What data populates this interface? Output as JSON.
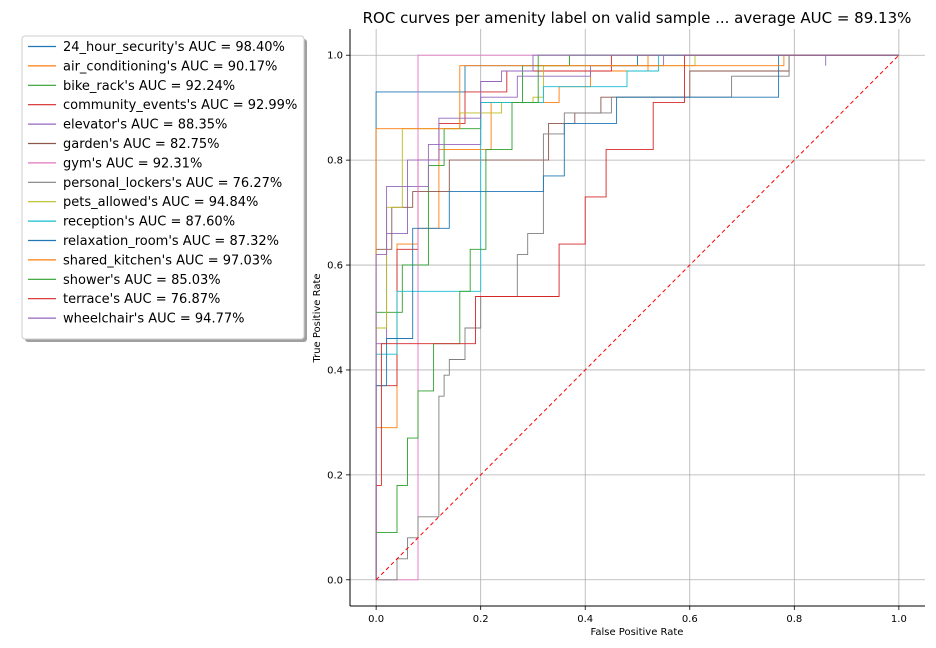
{
  "chart_data": {
    "type": "line",
    "title": "ROC curves per amenity label on valid sample ... average AUC = 89.13%",
    "xlabel": "False Positive Rate",
    "ylabel": "True Positive Rate",
    "xlim": [
      -0.05,
      1.05
    ],
    "ylim": [
      -0.05,
      1.05
    ],
    "xticks": [
      "0.0",
      "0.2",
      "0.4",
      "0.6",
      "0.8",
      "1.0"
    ],
    "yticks": [
      "0.0",
      "0.2",
      "0.4",
      "0.6",
      "0.8",
      "1.0"
    ],
    "grid": true,
    "legend_position": "outside-left",
    "series": [
      {
        "name": "24_hour_security's AUC = 98.40%",
        "color": "#1f77b4",
        "points": [
          [
            0,
            0
          ],
          [
            0,
            0.93
          ],
          [
            0.17,
            0.93
          ],
          [
            0.17,
            0.98
          ],
          [
            0.5,
            0.98
          ],
          [
            0.5,
            1
          ],
          [
            1,
            1
          ]
        ]
      },
      {
        "name": "air_conditioning's AUC = 90.17%",
        "color": "#ff7f0e",
        "points": [
          [
            0,
            0
          ],
          [
            0,
            0.29
          ],
          [
            0.04,
            0.29
          ],
          [
            0.04,
            0.64
          ],
          [
            0.08,
            0.64
          ],
          [
            0.08,
            0.67
          ],
          [
            0.12,
            0.67
          ],
          [
            0.12,
            0.82
          ],
          [
            0.22,
            0.82
          ],
          [
            0.22,
            0.91
          ],
          [
            0.35,
            0.91
          ],
          [
            0.35,
            0.94
          ],
          [
            0.41,
            0.94
          ],
          [
            0.41,
            0.97
          ],
          [
            0.52,
            0.97
          ],
          [
            0.52,
            1
          ],
          [
            1,
            1
          ]
        ]
      },
      {
        "name": "bike_rack's AUC = 92.24%",
        "color": "#2ca02c",
        "points": [
          [
            0,
            0
          ],
          [
            0,
            0.51
          ],
          [
            0.05,
            0.51
          ],
          [
            0.05,
            0.6
          ],
          [
            0.1,
            0.6
          ],
          [
            0.1,
            0.79
          ],
          [
            0.13,
            0.79
          ],
          [
            0.13,
            0.86
          ],
          [
            0.2,
            0.86
          ],
          [
            0.2,
            0.91
          ],
          [
            0.28,
            0.91
          ],
          [
            0.28,
            0.98
          ],
          [
            0.37,
            0.98
          ],
          [
            0.37,
            1
          ],
          [
            1,
            1
          ]
        ]
      },
      {
        "name": "community_events's AUC = 92.99%",
        "color": "#d62728",
        "points": [
          [
            0,
            0
          ],
          [
            0,
            0.37
          ],
          [
            0.04,
            0.37
          ],
          [
            0.04,
            0.63
          ],
          [
            0.08,
            0.63
          ],
          [
            0.08,
            0.8
          ],
          [
            0.12,
            0.8
          ],
          [
            0.12,
            0.87
          ],
          [
            0.17,
            0.87
          ],
          [
            0.17,
            0.93
          ],
          [
            0.25,
            0.93
          ],
          [
            0.25,
            0.97
          ],
          [
            0.45,
            0.97
          ],
          [
            0.45,
            1
          ],
          [
            1,
            1
          ]
        ]
      },
      {
        "name": "elevator's AUC = 88.35%",
        "color": "#9467bd",
        "points": [
          [
            0,
            0
          ],
          [
            0,
            0.45
          ],
          [
            0.02,
            0.45
          ],
          [
            0.02,
            0.66
          ],
          [
            0.06,
            0.66
          ],
          [
            0.06,
            0.75
          ],
          [
            0.1,
            0.75
          ],
          [
            0.1,
            0.83
          ],
          [
            0.2,
            0.83
          ],
          [
            0.2,
            0.92
          ],
          [
            0.27,
            0.92
          ],
          [
            0.27,
            0.96
          ],
          [
            0.41,
            0.96
          ],
          [
            0.41,
            0.98
          ],
          [
            0.55,
            0.98
          ],
          [
            0.55,
            1
          ],
          [
            1,
            1
          ]
        ]
      },
      {
        "name": "garden's AUC = 82.75%",
        "color": "#8c564b",
        "points": [
          [
            0,
            0
          ],
          [
            0,
            0.63
          ],
          [
            0.03,
            0.63
          ],
          [
            0.03,
            0.71
          ],
          [
            0.07,
            0.71
          ],
          [
            0.07,
            0.74
          ],
          [
            0.14,
            0.74
          ],
          [
            0.14,
            0.8
          ],
          [
            0.33,
            0.8
          ],
          [
            0.33,
            0.87
          ],
          [
            0.38,
            0.87
          ],
          [
            0.38,
            0.89
          ],
          [
            0.43,
            0.89
          ],
          [
            0.43,
            0.92
          ],
          [
            0.6,
            0.92
          ],
          [
            0.6,
            0.97
          ],
          [
            0.79,
            0.97
          ],
          [
            0.79,
            1
          ],
          [
            1,
            1
          ]
        ]
      },
      {
        "name": "gym's AUC = 92.31%",
        "color": "#e377c2",
        "points": [
          [
            0,
            0
          ],
          [
            0.08,
            0
          ],
          [
            0.08,
            1
          ],
          [
            1,
            1
          ]
        ]
      },
      {
        "name": "personal_lockers's AUC = 76.27%",
        "color": "#7f7f7f",
        "points": [
          [
            0,
            0
          ],
          [
            0.04,
            0
          ],
          [
            0.04,
            0.04
          ],
          [
            0.06,
            0.04
          ],
          [
            0.06,
            0.08
          ],
          [
            0.08,
            0.08
          ],
          [
            0.08,
            0.12
          ],
          [
            0.12,
            0.12
          ],
          [
            0.12,
            0.35
          ],
          [
            0.13,
            0.35
          ],
          [
            0.13,
            0.39
          ],
          [
            0.14,
            0.39
          ],
          [
            0.14,
            0.42
          ],
          [
            0.17,
            0.42
          ],
          [
            0.17,
            0.48
          ],
          [
            0.2,
            0.48
          ],
          [
            0.2,
            0.54
          ],
          [
            0.27,
            0.54
          ],
          [
            0.27,
            0.62
          ],
          [
            0.29,
            0.62
          ],
          [
            0.29,
            0.66
          ],
          [
            0.32,
            0.66
          ],
          [
            0.32,
            0.85
          ],
          [
            0.36,
            0.85
          ],
          [
            0.36,
            0.89
          ],
          [
            0.45,
            0.89
          ],
          [
            0.45,
            0.92
          ],
          [
            0.68,
            0.92
          ],
          [
            0.68,
            0.96
          ],
          [
            0.79,
            0.96
          ],
          [
            0.79,
            1
          ],
          [
            1,
            1
          ]
        ]
      },
      {
        "name": "pets_allowed's AUC = 94.84%",
        "color": "#bcbd22",
        "points": [
          [
            0,
            0
          ],
          [
            0,
            0.48
          ],
          [
            0.02,
            0.48
          ],
          [
            0.02,
            0.71
          ],
          [
            0.05,
            0.71
          ],
          [
            0.05,
            0.86
          ],
          [
            0.16,
            0.86
          ],
          [
            0.16,
            0.89
          ],
          [
            0.24,
            0.89
          ],
          [
            0.24,
            0.91
          ],
          [
            0.3,
            0.91
          ],
          [
            0.3,
            0.92
          ],
          [
            0.32,
            0.92
          ],
          [
            0.32,
            0.98
          ],
          [
            0.61,
            0.98
          ],
          [
            0.61,
            1
          ],
          [
            1,
            1
          ]
        ]
      },
      {
        "name": "reception's AUC = 87.60%",
        "color": "#17becf",
        "points": [
          [
            0,
            0
          ],
          [
            0,
            0.43
          ],
          [
            0.04,
            0.43
          ],
          [
            0.04,
            0.55
          ],
          [
            0.2,
            0.55
          ],
          [
            0.2,
            0.91
          ],
          [
            0.32,
            0.91
          ],
          [
            0.32,
            0.94
          ],
          [
            0.48,
            0.94
          ],
          [
            0.48,
            0.97
          ],
          [
            0.54,
            0.97
          ],
          [
            0.54,
            1
          ],
          [
            1,
            1
          ]
        ]
      },
      {
        "name": "relaxation_room's AUC = 87.32%",
        "color": "#1f77b4",
        "points": [
          [
            0,
            0
          ],
          [
            0,
            0.37
          ],
          [
            0.02,
            0.37
          ],
          [
            0.02,
            0.46
          ],
          [
            0.07,
            0.46
          ],
          [
            0.07,
            0.67
          ],
          [
            0.14,
            0.67
          ],
          [
            0.14,
            0.74
          ],
          [
            0.32,
            0.74
          ],
          [
            0.32,
            0.77
          ],
          [
            0.36,
            0.77
          ],
          [
            0.36,
            0.87
          ],
          [
            0.46,
            0.87
          ],
          [
            0.46,
            0.92
          ],
          [
            0.77,
            0.92
          ],
          [
            0.77,
            1
          ],
          [
            1,
            1
          ]
        ]
      },
      {
        "name": "shared_kitchen's AUC = 97.03%",
        "color": "#ff7f0e",
        "points": [
          [
            0,
            0
          ],
          [
            0,
            0.86
          ],
          [
            0.16,
            0.86
          ],
          [
            0.16,
            0.98
          ],
          [
            0.78,
            0.98
          ],
          [
            0.78,
            1
          ],
          [
            1,
            1
          ]
        ]
      },
      {
        "name": "shower's AUC = 85.03%",
        "color": "#2ca02c",
        "points": [
          [
            0,
            0
          ],
          [
            0,
            0.09
          ],
          [
            0.04,
            0.09
          ],
          [
            0.04,
            0.18
          ],
          [
            0.06,
            0.18
          ],
          [
            0.06,
            0.27
          ],
          [
            0.08,
            0.27
          ],
          [
            0.08,
            0.36
          ],
          [
            0.11,
            0.36
          ],
          [
            0.11,
            0.45
          ],
          [
            0.16,
            0.45
          ],
          [
            0.16,
            0.55
          ],
          [
            0.18,
            0.55
          ],
          [
            0.18,
            0.63
          ],
          [
            0.21,
            0.63
          ],
          [
            0.21,
            0.82
          ],
          [
            0.26,
            0.82
          ],
          [
            0.26,
            0.91
          ],
          [
            0.31,
            0.91
          ],
          [
            0.31,
            1
          ],
          [
            1,
            1
          ]
        ]
      },
      {
        "name": "terrace's AUC = 76.87%",
        "color": "#d62728",
        "points": [
          [
            0,
            0
          ],
          [
            0,
            0.18
          ],
          [
            0.01,
            0.18
          ],
          [
            0.01,
            0.45
          ],
          [
            0.19,
            0.45
          ],
          [
            0.19,
            0.54
          ],
          [
            0.35,
            0.54
          ],
          [
            0.35,
            0.64
          ],
          [
            0.4,
            0.64
          ],
          [
            0.4,
            0.73
          ],
          [
            0.44,
            0.73
          ],
          [
            0.44,
            0.82
          ],
          [
            0.53,
            0.82
          ],
          [
            0.53,
            0.91
          ],
          [
            0.59,
            0.91
          ],
          [
            0.59,
            1
          ],
          [
            1,
            1
          ]
        ]
      },
      {
        "name": "wheelchair's AUC = 94.77%",
        "color": "#9467bd",
        "points": [
          [
            0,
            0
          ],
          [
            0,
            0.62
          ],
          [
            0.02,
            0.62
          ],
          [
            0.02,
            0.75
          ],
          [
            0.06,
            0.75
          ],
          [
            0.06,
            0.8
          ],
          [
            0.12,
            0.8
          ],
          [
            0.12,
            0.88
          ],
          [
            0.2,
            0.88
          ],
          [
            0.2,
            0.95
          ],
          [
            0.24,
            0.95
          ],
          [
            0.24,
            0.97
          ],
          [
            0.3,
            0.97
          ],
          [
            0.3,
            1
          ],
          [
            0.86,
            1
          ],
          [
            0.86,
            0.98
          ],
          [
            0.86,
            1
          ],
          [
            1,
            1
          ]
        ]
      }
    ],
    "reference_line": {
      "points": [
        [
          0,
          0
        ],
        [
          1,
          1
        ]
      ],
      "color": "#ff0000",
      "style": "dashed"
    }
  }
}
